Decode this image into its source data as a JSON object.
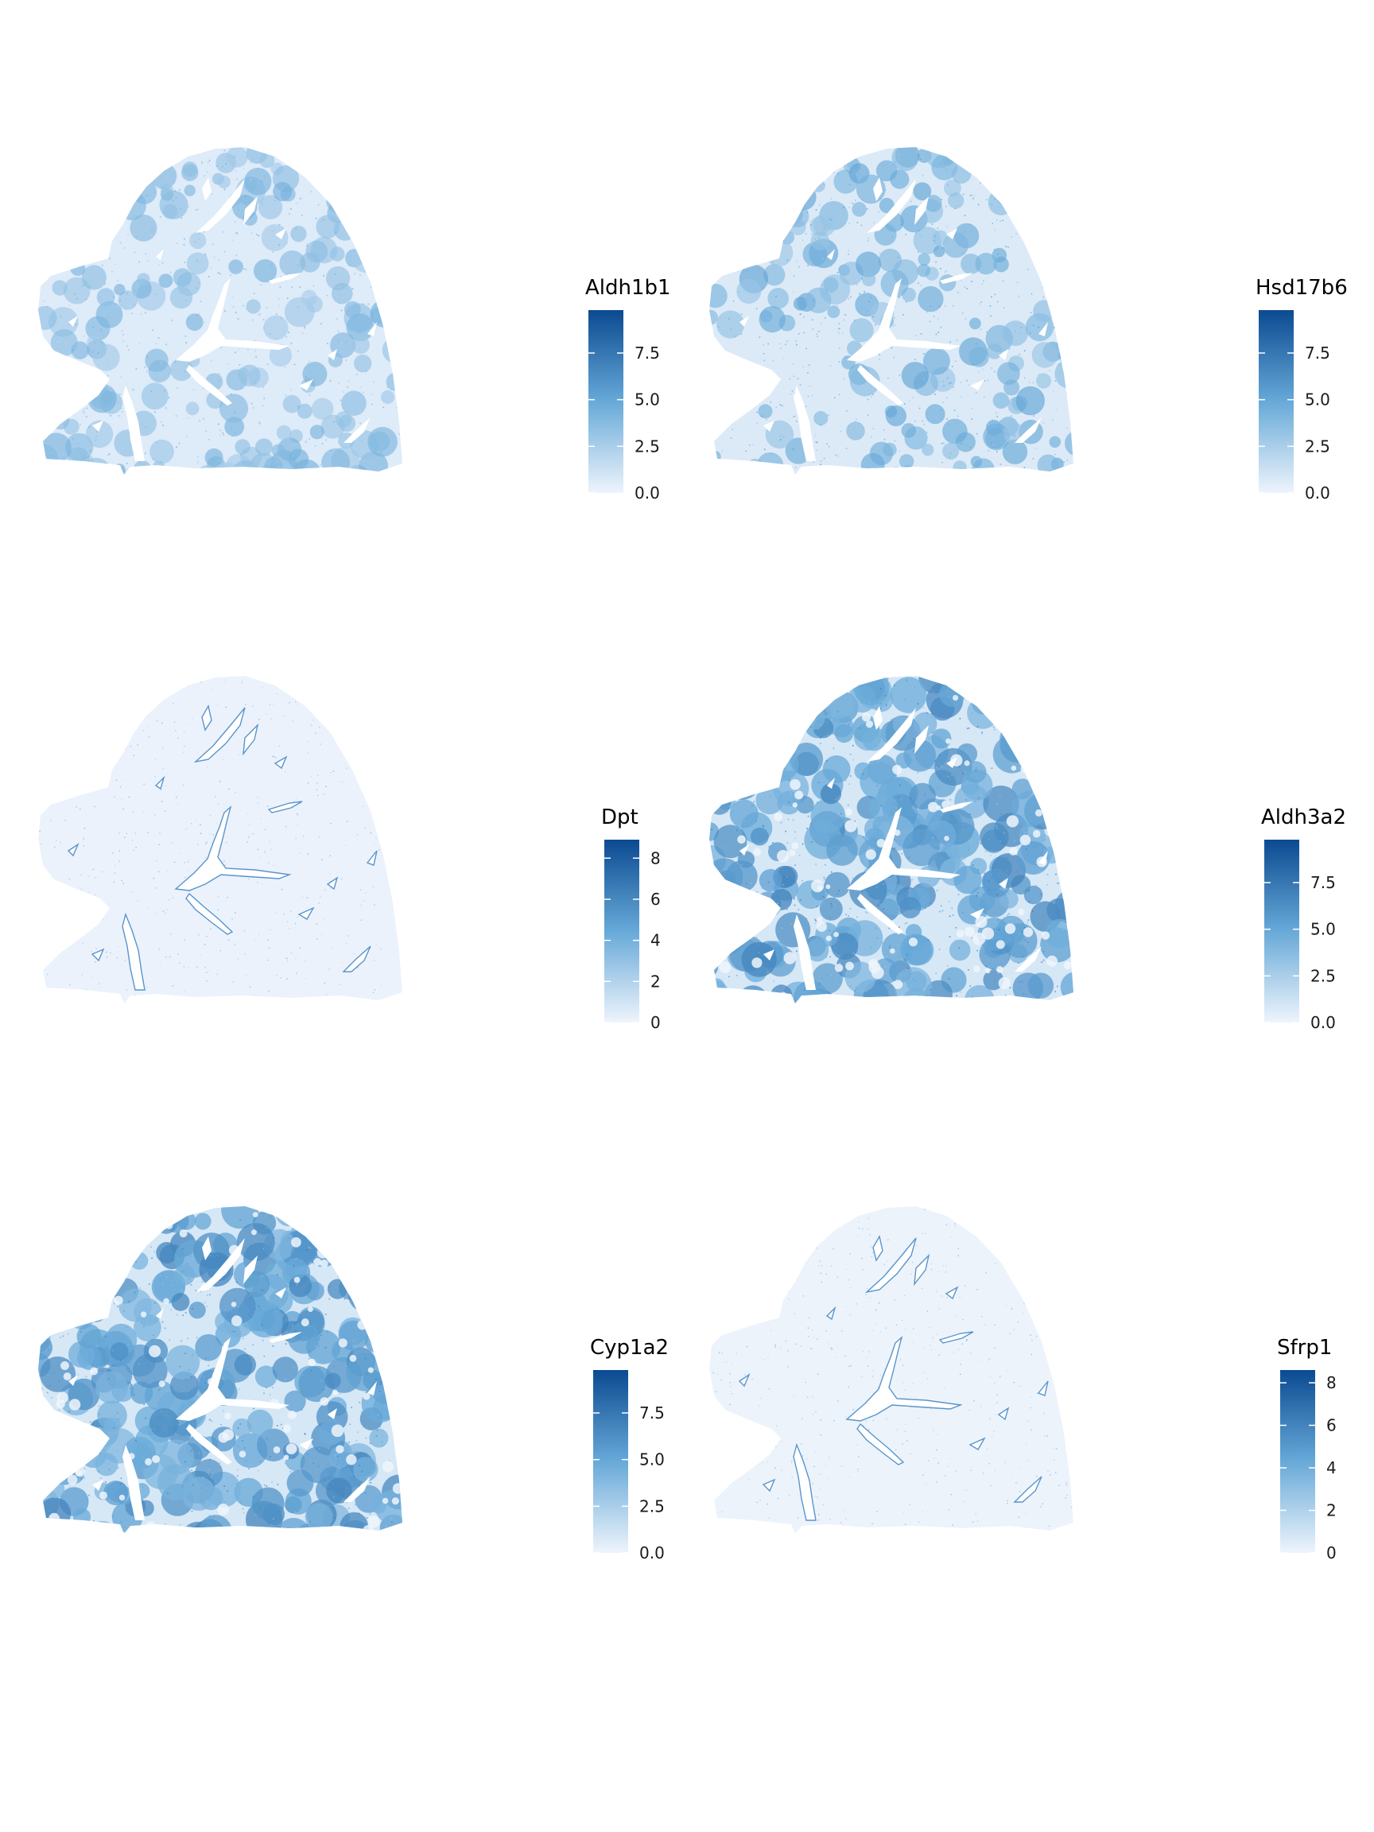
{
  "colors": {
    "low": "#eef4fc",
    "mid": "#67a9d8",
    "high": "#0b4a91",
    "vessel": "#ffffff",
    "vessel_edge": "#3d83c3"
  },
  "chart_data": [
    {
      "type": "heatmap",
      "title": "Aldh1b1",
      "pattern": "lobular-patchy",
      "fill_level": 0.32,
      "scale": {
        "min": 0,
        "max": 9.8,
        "ticks": [
          0,
          2.5,
          5,
          7.5
        ],
        "tick_labels": [
          "0.0",
          "2.5",
          "5.0",
          "7.5"
        ]
      },
      "legend_placement": "right"
    },
    {
      "type": "heatmap",
      "title": "Hsd17b6",
      "pattern": "lobular-patchy",
      "fill_level": 0.38,
      "scale": {
        "min": 0,
        "max": 9.8,
        "ticks": [
          0,
          2.5,
          5,
          7.5
        ],
        "tick_labels": [
          "0.0",
          "2.5",
          "5.0",
          "7.5"
        ]
      },
      "legend_placement": "right"
    },
    {
      "type": "heatmap",
      "title": "Dpt",
      "pattern": "vessel-lining",
      "fill_level": 0.06,
      "scale": {
        "min": 0,
        "max": 8.9,
        "ticks": [
          0,
          2,
          4,
          6,
          8
        ],
        "tick_labels": [
          "0",
          "2",
          "4",
          "6",
          "8"
        ]
      },
      "legend_placement": "right"
    },
    {
      "type": "heatmap",
      "title": "Aldh3a2",
      "pattern": "lobular-dense",
      "fill_level": 0.5,
      "scale": {
        "min": 0,
        "max": 9.8,
        "ticks": [
          0,
          2.5,
          5,
          7.5
        ],
        "tick_labels": [
          "0.0",
          "2.5",
          "5.0",
          "7.5"
        ]
      },
      "legend_placement": "right"
    },
    {
      "type": "heatmap",
      "title": "Cyp1a2",
      "pattern": "lobular-dense",
      "fill_level": 0.5,
      "scale": {
        "min": 0,
        "max": 9.8,
        "ticks": [
          0,
          2.5,
          5,
          7.5
        ],
        "tick_labels": [
          "0.0",
          "2.5",
          "5.0",
          "7.5"
        ]
      },
      "legend_placement": "right"
    },
    {
      "type": "heatmap",
      "title": "Sfrp1",
      "pattern": "vessel-lining",
      "fill_level": 0.04,
      "scale": {
        "min": 0,
        "max": 8.6,
        "ticks": [
          0,
          2,
          4,
          6,
          8
        ],
        "tick_labels": [
          "0",
          "2",
          "4",
          "6",
          "8"
        ]
      },
      "legend_placement": "right"
    }
  ]
}
